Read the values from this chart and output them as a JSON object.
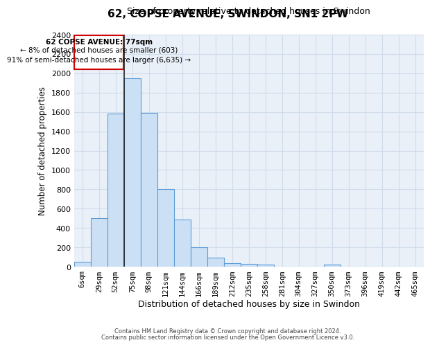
{
  "title": "62, COPSE AVENUE, SWINDON, SN1 2PW",
  "subtitle": "Size of property relative to detached houses in Swindon",
  "xlabel": "Distribution of detached houses by size in Swindon",
  "ylabel": "Number of detached properties",
  "footer_line1": "Contains HM Land Registry data © Crown copyright and database right 2024.",
  "footer_line2": "Contains public sector information licensed under the Open Government Licence v3.0.",
  "categories": [
    "6sqm",
    "29sqm",
    "52sqm",
    "75sqm",
    "98sqm",
    "121sqm",
    "144sqm",
    "166sqm",
    "189sqm",
    "212sqm",
    "235sqm",
    "258sqm",
    "281sqm",
    "304sqm",
    "327sqm",
    "350sqm",
    "373sqm",
    "396sqm",
    "419sqm",
    "442sqm",
    "465sqm"
  ],
  "values": [
    50,
    500,
    1580,
    1950,
    1590,
    800,
    490,
    200,
    90,
    35,
    30,
    25,
    0,
    0,
    0,
    20,
    0,
    0,
    0,
    0,
    0
  ],
  "bar_color": "#cce0f5",
  "bar_edge_color": "#5b9bd5",
  "property_line_index": 2,
  "annotation_text_line1": "62 COPSE AVENUE: 77sqm",
  "annotation_text_line2": "← 8% of detached houses are smaller (603)",
  "annotation_text_line3": "91% of semi-detached houses are larger (6,635) →",
  "annotation_box_color": "#ffffff",
  "annotation_border_color": "#cc0000",
  "ylim": [
    0,
    2400
  ],
  "yticks": [
    0,
    200,
    400,
    600,
    800,
    1000,
    1200,
    1400,
    1600,
    1800,
    2000,
    2200,
    2400
  ],
  "bg_color": "#ffffff",
  "plot_bg_color": "#eaf0f8",
  "grid_color": "#d0dcea"
}
